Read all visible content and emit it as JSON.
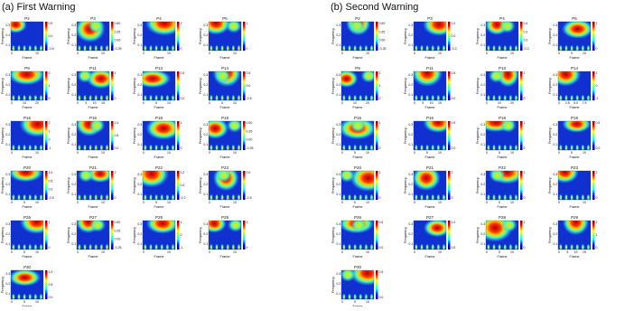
{
  "y_label": "Frequency",
  "x_label": "Frame",
  "y_ticks": [
    "0.1",
    "0.2",
    "0.3"
  ],
  "panels": [
    {
      "title": "(a) First Warning",
      "plots": [
        {
          "title": "P2",
          "x_ticks": [
            "0",
            "10"
          ],
          "cbar_ticks": [
            "0.5",
            "0.0",
            "-0.5"
          ]
        },
        {
          "title": "P3",
          "x_ticks": [
            "0",
            "10"
          ],
          "cbar_ticks": [
            "0.50",
            "0.25",
            "0.00",
            "-0.25"
          ]
        },
        {
          "title": "P4",
          "x_ticks": [
            "0",
            "10"
          ],
          "cbar_ticks": [
            "1",
            "0"
          ]
        },
        {
          "title": "P6",
          "x_ticks": [
            "0",
            "10"
          ],
          "cbar_ticks": [
            "1",
            "0"
          ]
        },
        {
          "title": "P9",
          "x_ticks": [
            "0",
            "10",
            "20"
          ],
          "cbar_ticks": [
            "2",
            "1",
            "0"
          ]
        },
        {
          "title": "P11",
          "x_ticks": [
            "0",
            "5",
            "10",
            "15"
          ],
          "cbar_ticks": [
            "1",
            "0"
          ]
        },
        {
          "title": "P13",
          "x_ticks": [
            "0",
            "5",
            "10"
          ],
          "cbar_ticks": [
            "0.5",
            "0.0"
          ]
        },
        {
          "title": "P14",
          "x_ticks": [
            "0",
            "5",
            "10"
          ],
          "cbar_ticks": [
            "0.5",
            "0.0",
            "-0.5"
          ]
        },
        {
          "title": "P15",
          "x_ticks": [
            "0",
            "10"
          ],
          "cbar_ticks": [
            "2",
            "1",
            "0",
            "-1"
          ]
        },
        {
          "title": "P16",
          "x_ticks": [
            "0",
            "10"
          ],
          "cbar_ticks": [
            "1.0",
            "0.5",
            "0.0"
          ]
        },
        {
          "title": "P18",
          "x_ticks": [
            "0",
            "10"
          ],
          "cbar_ticks": [
            "1",
            "0"
          ]
        },
        {
          "title": "P19",
          "x_ticks": [
            "0",
            "10"
          ],
          "cbar_ticks": [
            "0.50",
            "0.25",
            "0.00",
            "-0.25"
          ]
        },
        {
          "title": "P20",
          "x_ticks": [
            "0",
            "5",
            "10"
          ],
          "cbar_ticks": [
            "1.0",
            "0.5",
            "0.0",
            "-0.5"
          ]
        },
        {
          "title": "P21",
          "x_ticks": [
            "0",
            "10"
          ],
          "cbar_ticks": [
            "2",
            "0"
          ]
        },
        {
          "title": "P22",
          "x_ticks": [
            "0",
            "5",
            "10"
          ],
          "cbar_ticks": [
            "0.2",
            "0.0",
            "-0.2"
          ]
        },
        {
          "title": "P23",
          "x_ticks": [
            "0",
            "10"
          ],
          "cbar_ticks": [
            "0.0",
            "-2.5"
          ]
        },
        {
          "title": "P26",
          "x_ticks": [
            "0",
            "5",
            "10"
          ],
          "cbar_ticks": [
            "1",
            "0"
          ]
        },
        {
          "title": "P27",
          "x_ticks": [
            "0",
            "10"
          ],
          "cbar_ticks": [
            "0.50",
            "0.25",
            "0.00",
            "-0.25"
          ]
        },
        {
          "title": "P28",
          "x_ticks": [
            "0",
            "10"
          ],
          "cbar_ticks": [
            "1",
            "0",
            "-1"
          ]
        },
        {
          "title": "P29",
          "x_ticks": [
            "0",
            "10"
          ],
          "cbar_ticks": [
            "2",
            "0"
          ]
        },
        {
          "title": "P30",
          "x_ticks": [
            "0",
            "5",
            "10"
          ],
          "cbar_ticks": [
            "1.0",
            "0.5",
            "0.0"
          ]
        }
      ]
    },
    {
      "title": "(b) Second Warning",
      "plots": [
        {
          "title": "P2",
          "x_ticks": [
            "0",
            "10"
          ],
          "cbar_ticks": [
            "0.50",
            "0.25",
            "0.00",
            "-0.25"
          ]
        },
        {
          "title": "P3",
          "x_ticks": [
            "0",
            "10"
          ],
          "cbar_ticks": [
            "0.2",
            "0.0",
            "-0.2"
          ]
        },
        {
          "title": "P4",
          "x_ticks": [
            "0",
            "10"
          ],
          "cbar_ticks": [
            "0.4",
            "0.2",
            "0.0",
            "-0.2"
          ]
        },
        {
          "title": "P6",
          "x_ticks": [
            "0",
            "5",
            "10"
          ],
          "cbar_ticks": [
            "1",
            "0"
          ]
        },
        {
          "title": "P9",
          "x_ticks": [
            "0",
            "10",
            "20"
          ],
          "cbar_ticks": [
            "2",
            "1",
            "0"
          ]
        },
        {
          "title": "P11",
          "x_ticks": [
            "0",
            "5",
            "10",
            "15"
          ],
          "cbar_ticks": [
            "0.5",
            "0.0"
          ]
        },
        {
          "title": "P13",
          "x_ticks": [
            "0",
            "10",
            "20"
          ],
          "cbar_ticks": [
            "1",
            "0"
          ]
        },
        {
          "title": "P14",
          "x_ticks": [
            "0",
            "2.5",
            "5.0",
            "7.5"
          ],
          "cbar_ticks": [
            "1",
            "0",
            "-1"
          ]
        },
        {
          "title": "P15",
          "x_ticks": [
            "0",
            "5",
            "10"
          ],
          "cbar_ticks": [
            "1",
            "0"
          ]
        },
        {
          "title": "P16",
          "x_ticks": [
            "0",
            "5",
            "10"
          ],
          "cbar_ticks": [
            "0.5",
            "0.0"
          ]
        },
        {
          "title": "P18",
          "x_ticks": [
            "0",
            "5",
            "10"
          ],
          "cbar_ticks": [
            "1",
            "0"
          ]
        },
        {
          "title": "P19",
          "x_ticks": [
            "0",
            "5",
            "10"
          ],
          "cbar_ticks": [
            "0.5",
            "0.0"
          ]
        },
        {
          "title": "P20",
          "x_ticks": [
            "0",
            "5",
            "10"
          ],
          "cbar_ticks": [
            "1",
            "0"
          ]
        },
        {
          "title": "P21",
          "x_ticks": [
            "0",
            "10"
          ],
          "cbar_ticks": [
            "2",
            "0"
          ]
        },
        {
          "title": "P22",
          "x_ticks": [
            "0",
            "5",
            "10"
          ],
          "cbar_ticks": [
            "1",
            "0"
          ]
        },
        {
          "title": "P23",
          "x_ticks": [
            "0",
            "10"
          ],
          "cbar_ticks": [
            "2",
            "0"
          ]
        },
        {
          "title": "P26",
          "x_ticks": [
            "0",
            "10"
          ],
          "cbar_ticks": [
            "0.5",
            "0.0"
          ]
        },
        {
          "title": "P27",
          "x_ticks": [
            "0",
            "10"
          ],
          "cbar_ticks": [
            "1.0",
            "0.5"
          ]
        },
        {
          "title": "P28",
          "x_ticks": [
            "0",
            "5",
            "10"
          ],
          "cbar_ticks": [
            "2",
            "0"
          ]
        },
        {
          "title": "P29",
          "x_ticks": [
            "0",
            "5",
            "10",
            "15"
          ],
          "cbar_ticks": [
            "2",
            "1",
            "0"
          ]
        },
        {
          "title": "P30",
          "x_ticks": [
            "0",
            "5",
            "10"
          ],
          "cbar_ticks": [
            "0.5",
            "0.0"
          ]
        }
      ]
    }
  ]
}
